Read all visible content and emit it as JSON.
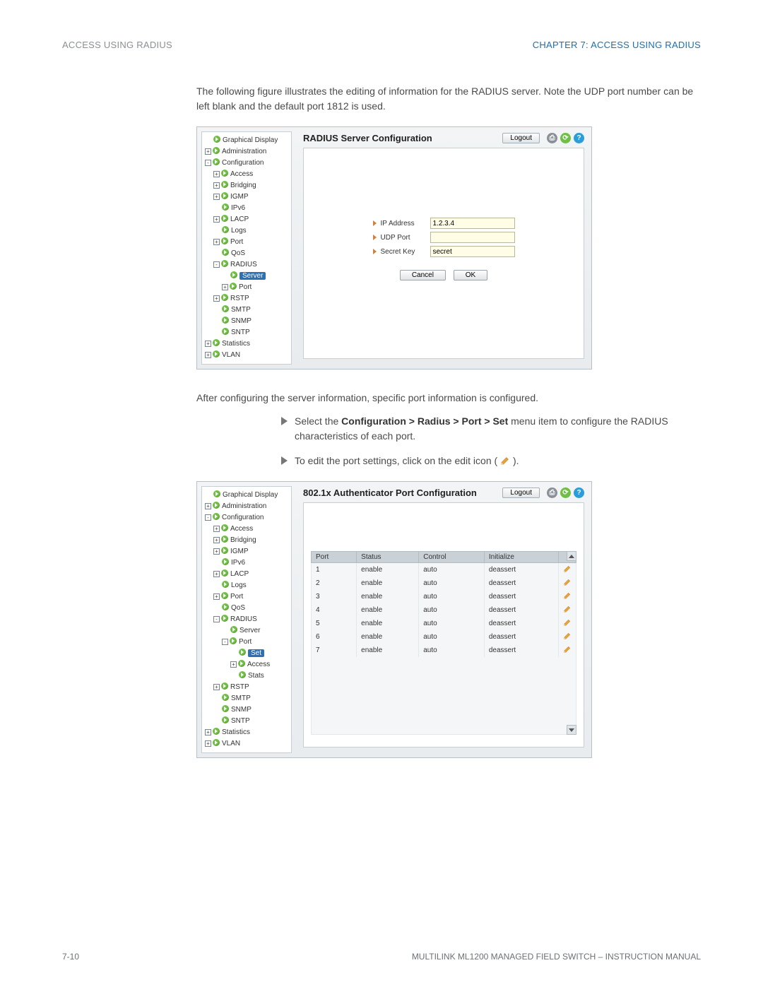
{
  "header": {
    "left": "ACCESS USING RADIUS",
    "right": "CHAPTER 7: ACCESS USING RADIUS"
  },
  "para1": "The following figure illustrates the editing of information for the RADIUS server. Note the UDP port number can be left blank and the default port 1812 is used.",
  "para2": "After configuring the server information, specific port information is configured.",
  "bullets": {
    "b1a": "Select the ",
    "b1b": "Configuration > Radius > Port > Set",
    "b1c": " menu item to configure the RADIUS characteristics of each port.",
    "b2a": "To edit the port settings, click on the edit icon ( ",
    "b2b": " )."
  },
  "footer": {
    "left": "7-10",
    "right": "MULTILINK ML1200 MANAGED FIELD SWITCH – INSTRUCTION MANUAL"
  },
  "titlebar": {
    "logout": "Logout",
    "circ_colors": {
      "print": "#8a9098",
      "refresh": "#6fbf44",
      "help": "#2a9ed8"
    },
    "circ_glyphs": {
      "print": "⎙",
      "refresh": "⟳",
      "help": "?"
    }
  },
  "app1": {
    "title": "RADIUS Server Configuration",
    "tree": [
      {
        "ind": 0,
        "pm": "",
        "label": "Graphical Display"
      },
      {
        "ind": 0,
        "pm": "+",
        "label": "Administration"
      },
      {
        "ind": 0,
        "pm": "-",
        "label": "Configuration"
      },
      {
        "ind": 1,
        "pm": "+",
        "label": "Access"
      },
      {
        "ind": 1,
        "pm": "+",
        "label": "Bridging"
      },
      {
        "ind": 1,
        "pm": "+",
        "label": "IGMP"
      },
      {
        "ind": 1,
        "pm": "",
        "label": "IPv6"
      },
      {
        "ind": 1,
        "pm": "+",
        "label": "LACP"
      },
      {
        "ind": 1,
        "pm": "",
        "label": "Logs"
      },
      {
        "ind": 1,
        "pm": "+",
        "label": "Port"
      },
      {
        "ind": 1,
        "pm": "",
        "label": "QoS"
      },
      {
        "ind": 1,
        "pm": "-",
        "label": "RADIUS"
      },
      {
        "ind": 2,
        "pm": "",
        "label": "Server",
        "selected": true
      },
      {
        "ind": 2,
        "pm": "+",
        "label": "Port"
      },
      {
        "ind": 1,
        "pm": "+",
        "label": "RSTP"
      },
      {
        "ind": 1,
        "pm": "",
        "label": "SMTP"
      },
      {
        "ind": 1,
        "pm": "",
        "label": "SNMP"
      },
      {
        "ind": 1,
        "pm": "",
        "label": "SNTP"
      },
      {
        "ind": 0,
        "pm": "+",
        "label": "Statistics"
      },
      {
        "ind": 0,
        "pm": "+",
        "label": "VLAN"
      }
    ],
    "fields": {
      "ip_label": "IP Address",
      "ip_value": "1.2.3.4",
      "udp_label": "UDP Port",
      "udp_value": "",
      "key_label": "Secret Key",
      "key_value": "secret"
    },
    "buttons": {
      "cancel": "Cancel",
      "ok": "OK"
    }
  },
  "app2": {
    "title": "802.1x Authenticator Port Configuration",
    "tree": [
      {
        "ind": 0,
        "pm": "",
        "label": "Graphical Display"
      },
      {
        "ind": 0,
        "pm": "+",
        "label": "Administration"
      },
      {
        "ind": 0,
        "pm": "-",
        "label": "Configuration"
      },
      {
        "ind": 1,
        "pm": "+",
        "label": "Access"
      },
      {
        "ind": 1,
        "pm": "+",
        "label": "Bridging"
      },
      {
        "ind": 1,
        "pm": "+",
        "label": "IGMP"
      },
      {
        "ind": 1,
        "pm": "",
        "label": "IPv6"
      },
      {
        "ind": 1,
        "pm": "+",
        "label": "LACP"
      },
      {
        "ind": 1,
        "pm": "",
        "label": "Logs"
      },
      {
        "ind": 1,
        "pm": "+",
        "label": "Port"
      },
      {
        "ind": 1,
        "pm": "",
        "label": "QoS"
      },
      {
        "ind": 1,
        "pm": "-",
        "label": "RADIUS"
      },
      {
        "ind": 2,
        "pm": "",
        "label": "Server"
      },
      {
        "ind": 2,
        "pm": "-",
        "label": "Port"
      },
      {
        "ind": 3,
        "pm": "",
        "label": "Set",
        "selected": true
      },
      {
        "ind": 3,
        "pm": "+",
        "label": "Access"
      },
      {
        "ind": 3,
        "pm": "",
        "label": "Stats"
      },
      {
        "ind": 1,
        "pm": "+",
        "label": "RSTP"
      },
      {
        "ind": 1,
        "pm": "",
        "label": "SMTP"
      },
      {
        "ind": 1,
        "pm": "",
        "label": "SNMP"
      },
      {
        "ind": 1,
        "pm": "",
        "label": "SNTP"
      },
      {
        "ind": 0,
        "pm": "+",
        "label": "Statistics"
      },
      {
        "ind": 0,
        "pm": "+",
        "label": "VLAN"
      }
    ],
    "table": {
      "columns": [
        "Port",
        "Status",
        "Control",
        "Initialize"
      ],
      "rows": [
        [
          "1",
          "enable",
          "auto",
          "deassert"
        ],
        [
          "2",
          "enable",
          "auto",
          "deassert"
        ],
        [
          "3",
          "enable",
          "auto",
          "deassert"
        ],
        [
          "4",
          "enable",
          "auto",
          "deassert"
        ],
        [
          "5",
          "enable",
          "auto",
          "deassert"
        ],
        [
          "6",
          "enable",
          "auto",
          "deassert"
        ],
        [
          "7",
          "enable",
          "auto",
          "deassert"
        ]
      ]
    }
  }
}
